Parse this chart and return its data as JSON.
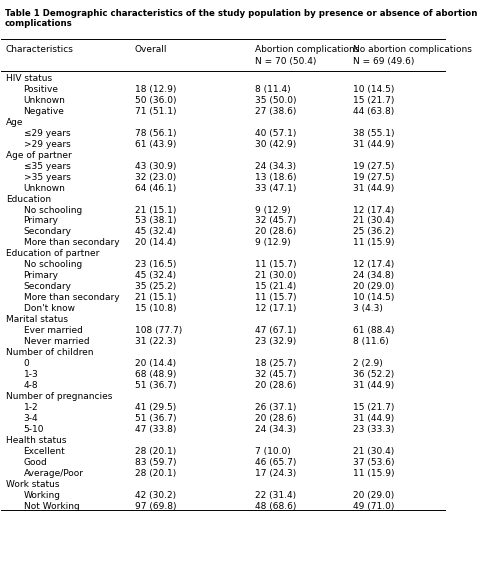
{
  "title": "Table 1 Demographic characteristics of the study population by presence or absence of abortion complications",
  "columns": [
    "Characteristics",
    "Overall",
    "Abortion complications\nN = 70 (50.4)",
    "No abortion complications\nN = 69 (49.6)"
  ],
  "rows": [
    {
      "label": "HIV status",
      "indent": 0,
      "bold": true,
      "values": [
        "",
        "",
        ""
      ]
    },
    {
      "label": "Positive",
      "indent": 1,
      "bold": false,
      "values": [
        "18 (12.9)",
        "8 (11.4)",
        "10 (14.5)"
      ]
    },
    {
      "label": "Unknown",
      "indent": 1,
      "bold": false,
      "values": [
        "50 (36.0)",
        "35 (50.0)",
        "15 (21.7)"
      ]
    },
    {
      "label": "Negative",
      "indent": 1,
      "bold": false,
      "values": [
        "71 (51.1)",
        "27 (38.6)",
        "44 (63.8)"
      ]
    },
    {
      "label": "Age",
      "indent": 0,
      "bold": true,
      "values": [
        "",
        "",
        ""
      ]
    },
    {
      "label": "≤29 years",
      "indent": 1,
      "bold": false,
      "values": [
        "78 (56.1)",
        "40 (57.1)",
        "38 (55.1)"
      ]
    },
    {
      "label": ">29 years",
      "indent": 1,
      "bold": false,
      "values": [
        "61 (43.9)",
        "30 (42.9)",
        "31 (44.9)"
      ]
    },
    {
      "label": "Age of partner",
      "indent": 0,
      "bold": true,
      "values": [
        "",
        "",
        ""
      ]
    },
    {
      "label": "≤35 years",
      "indent": 1,
      "bold": false,
      "values": [
        "43 (30.9)",
        "24 (34.3)",
        "19 (27.5)"
      ]
    },
    {
      "label": ">35 years",
      "indent": 1,
      "bold": false,
      "values": [
        "32 (23.0)",
        "13 (18.6)",
        "19 (27.5)"
      ]
    },
    {
      "label": "Unknown",
      "indent": 1,
      "bold": false,
      "values": [
        "64 (46.1)",
        "33 (47.1)",
        "31 (44.9)"
      ]
    },
    {
      "label": "Education",
      "indent": 0,
      "bold": true,
      "values": [
        "",
        "",
        ""
      ]
    },
    {
      "label": "No schooling",
      "indent": 1,
      "bold": false,
      "values": [
        "21 (15.1)",
        "9 (12.9)",
        "12 (17.4)"
      ]
    },
    {
      "label": "Primary",
      "indent": 1,
      "bold": false,
      "values": [
        "53 (38.1)",
        "32 (45.7)",
        "21 (30.4)"
      ]
    },
    {
      "label": "Secondary",
      "indent": 1,
      "bold": false,
      "values": [
        "45 (32.4)",
        "20 (28.6)",
        "25 (36.2)"
      ]
    },
    {
      "label": "More than secondary",
      "indent": 1,
      "bold": false,
      "values": [
        "20 (14.4)",
        "9 (12.9)",
        "11 (15.9)"
      ]
    },
    {
      "label": "Education of partner",
      "indent": 0,
      "bold": true,
      "values": [
        "",
        "",
        ""
      ]
    },
    {
      "label": "No schooling",
      "indent": 1,
      "bold": false,
      "values": [
        "23 (16.5)",
        "11 (15.7)",
        "12 (17.4)"
      ]
    },
    {
      "label": "Primary",
      "indent": 1,
      "bold": false,
      "values": [
        "45 (32.4)",
        "21 (30.0)",
        "24 (34.8)"
      ]
    },
    {
      "label": "Secondary",
      "indent": 1,
      "bold": false,
      "values": [
        "35 (25.2)",
        "15 (21.4)",
        "20 (29.0)"
      ]
    },
    {
      "label": "More than secondary",
      "indent": 1,
      "bold": false,
      "values": [
        "21 (15.1)",
        "11 (15.7)",
        "10 (14.5)"
      ]
    },
    {
      "label": "Don't know",
      "indent": 1,
      "bold": false,
      "values": [
        "15 (10.8)",
        "12 (17.1)",
        "3 (4.3)"
      ]
    },
    {
      "label": "Marital status",
      "indent": 0,
      "bold": true,
      "values": [
        "",
        "",
        ""
      ]
    },
    {
      "label": "Ever married",
      "indent": 1,
      "bold": false,
      "values": [
        "108 (77.7)",
        "47 (67.1)",
        "61 (88.4)"
      ]
    },
    {
      "label": "Never married",
      "indent": 1,
      "bold": false,
      "values": [
        "31 (22.3)",
        "23 (32.9)",
        "8 (11.6)"
      ]
    },
    {
      "label": "Number of children",
      "indent": 0,
      "bold": true,
      "values": [
        "",
        "",
        ""
      ]
    },
    {
      "label": "0",
      "indent": 1,
      "bold": false,
      "values": [
        "20 (14.4)",
        "18 (25.7)",
        "2 (2.9)"
      ]
    },
    {
      "label": "1-3",
      "indent": 1,
      "bold": false,
      "values": [
        "68 (48.9)",
        "32 (45.7)",
        "36 (52.2)"
      ]
    },
    {
      "label": "4-8",
      "indent": 1,
      "bold": false,
      "values": [
        "51 (36.7)",
        "20 (28.6)",
        "31 (44.9)"
      ]
    },
    {
      "label": "Number of pregnancies",
      "indent": 0,
      "bold": true,
      "values": [
        "",
        "",
        ""
      ]
    },
    {
      "label": "1-2",
      "indent": 1,
      "bold": false,
      "values": [
        "41 (29.5)",
        "26 (37.1)",
        "15 (21.7)"
      ]
    },
    {
      "label": "3-4",
      "indent": 1,
      "bold": false,
      "values": [
        "51 (36.7)",
        "20 (28.6)",
        "31 (44.9)"
      ]
    },
    {
      "label": "5-10",
      "indent": 1,
      "bold": false,
      "values": [
        "47 (33.8)",
        "24 (34.3)",
        "23 (33.3)"
      ]
    },
    {
      "label": "Health status",
      "indent": 0,
      "bold": true,
      "values": [
        "",
        "",
        ""
      ]
    },
    {
      "label": "Excellent",
      "indent": 1,
      "bold": false,
      "values": [
        "28 (20.1)",
        "7 (10.0)",
        "21 (30.4)"
      ]
    },
    {
      "label": "Good",
      "indent": 1,
      "bold": false,
      "values": [
        "83 (59.7)",
        "46 (65.7)",
        "37 (53.6)"
      ]
    },
    {
      "label": "Average/Poor",
      "indent": 1,
      "bold": false,
      "values": [
        "28 (20.1)",
        "17 (24.3)",
        "11 (15.9)"
      ]
    },
    {
      "label": "Work status",
      "indent": 0,
      "bold": true,
      "values": [
        "",
        "",
        ""
      ]
    },
    {
      "label": "Working",
      "indent": 1,
      "bold": false,
      "values": [
        "42 (30.2)",
        "22 (31.4)",
        "20 (29.0)"
      ]
    },
    {
      "label": "Not Working",
      "indent": 1,
      "bold": false,
      "values": [
        "97 (69.8)",
        "48 (68.6)",
        "49 (71.0)"
      ]
    }
  ],
  "bg_color": "#ffffff",
  "text_color": "#000000",
  "header_line_color": "#000000",
  "font_size": 6.5,
  "header_font_size": 6.5
}
